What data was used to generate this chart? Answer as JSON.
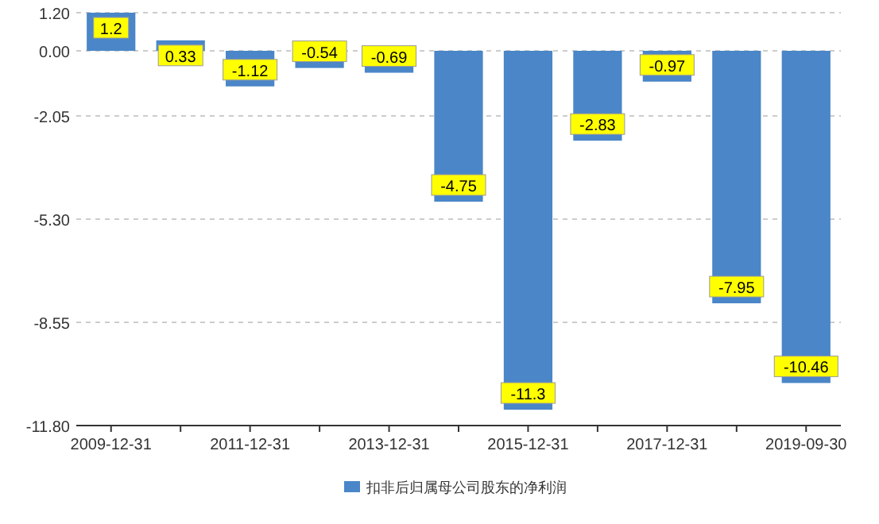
{
  "chart_data": {
    "type": "bar",
    "categories": [
      "2009-12-31",
      null,
      "2011-12-31",
      null,
      "2013-12-31",
      null,
      "2015-12-31",
      null,
      "2017-12-31",
      null,
      "2019-09-30"
    ],
    "series": [
      {
        "name": "扣非后归属母公司股东的净利润",
        "color": "#4a86c8",
        "values": [
          1.2,
          0.33,
          -1.12,
          -0.54,
          -0.69,
          -4.75,
          -11.3,
          -2.83,
          -0.97,
          -7.95,
          -10.46
        ]
      }
    ],
    "ylim": [
      -11.8,
      1.2
    ],
    "yticks": [
      {
        "value": 1.2,
        "label": "1.20"
      },
      {
        "value": 0,
        "label": "0.00"
      },
      -2.05,
      {
        "value": -5.3,
        "label": "-5.30"
      },
      -8.55,
      {
        "value": -11.8,
        "label": "-11.80"
      }
    ],
    "grid": "y",
    "legend": "bottom",
    "data_labels": true
  }
}
